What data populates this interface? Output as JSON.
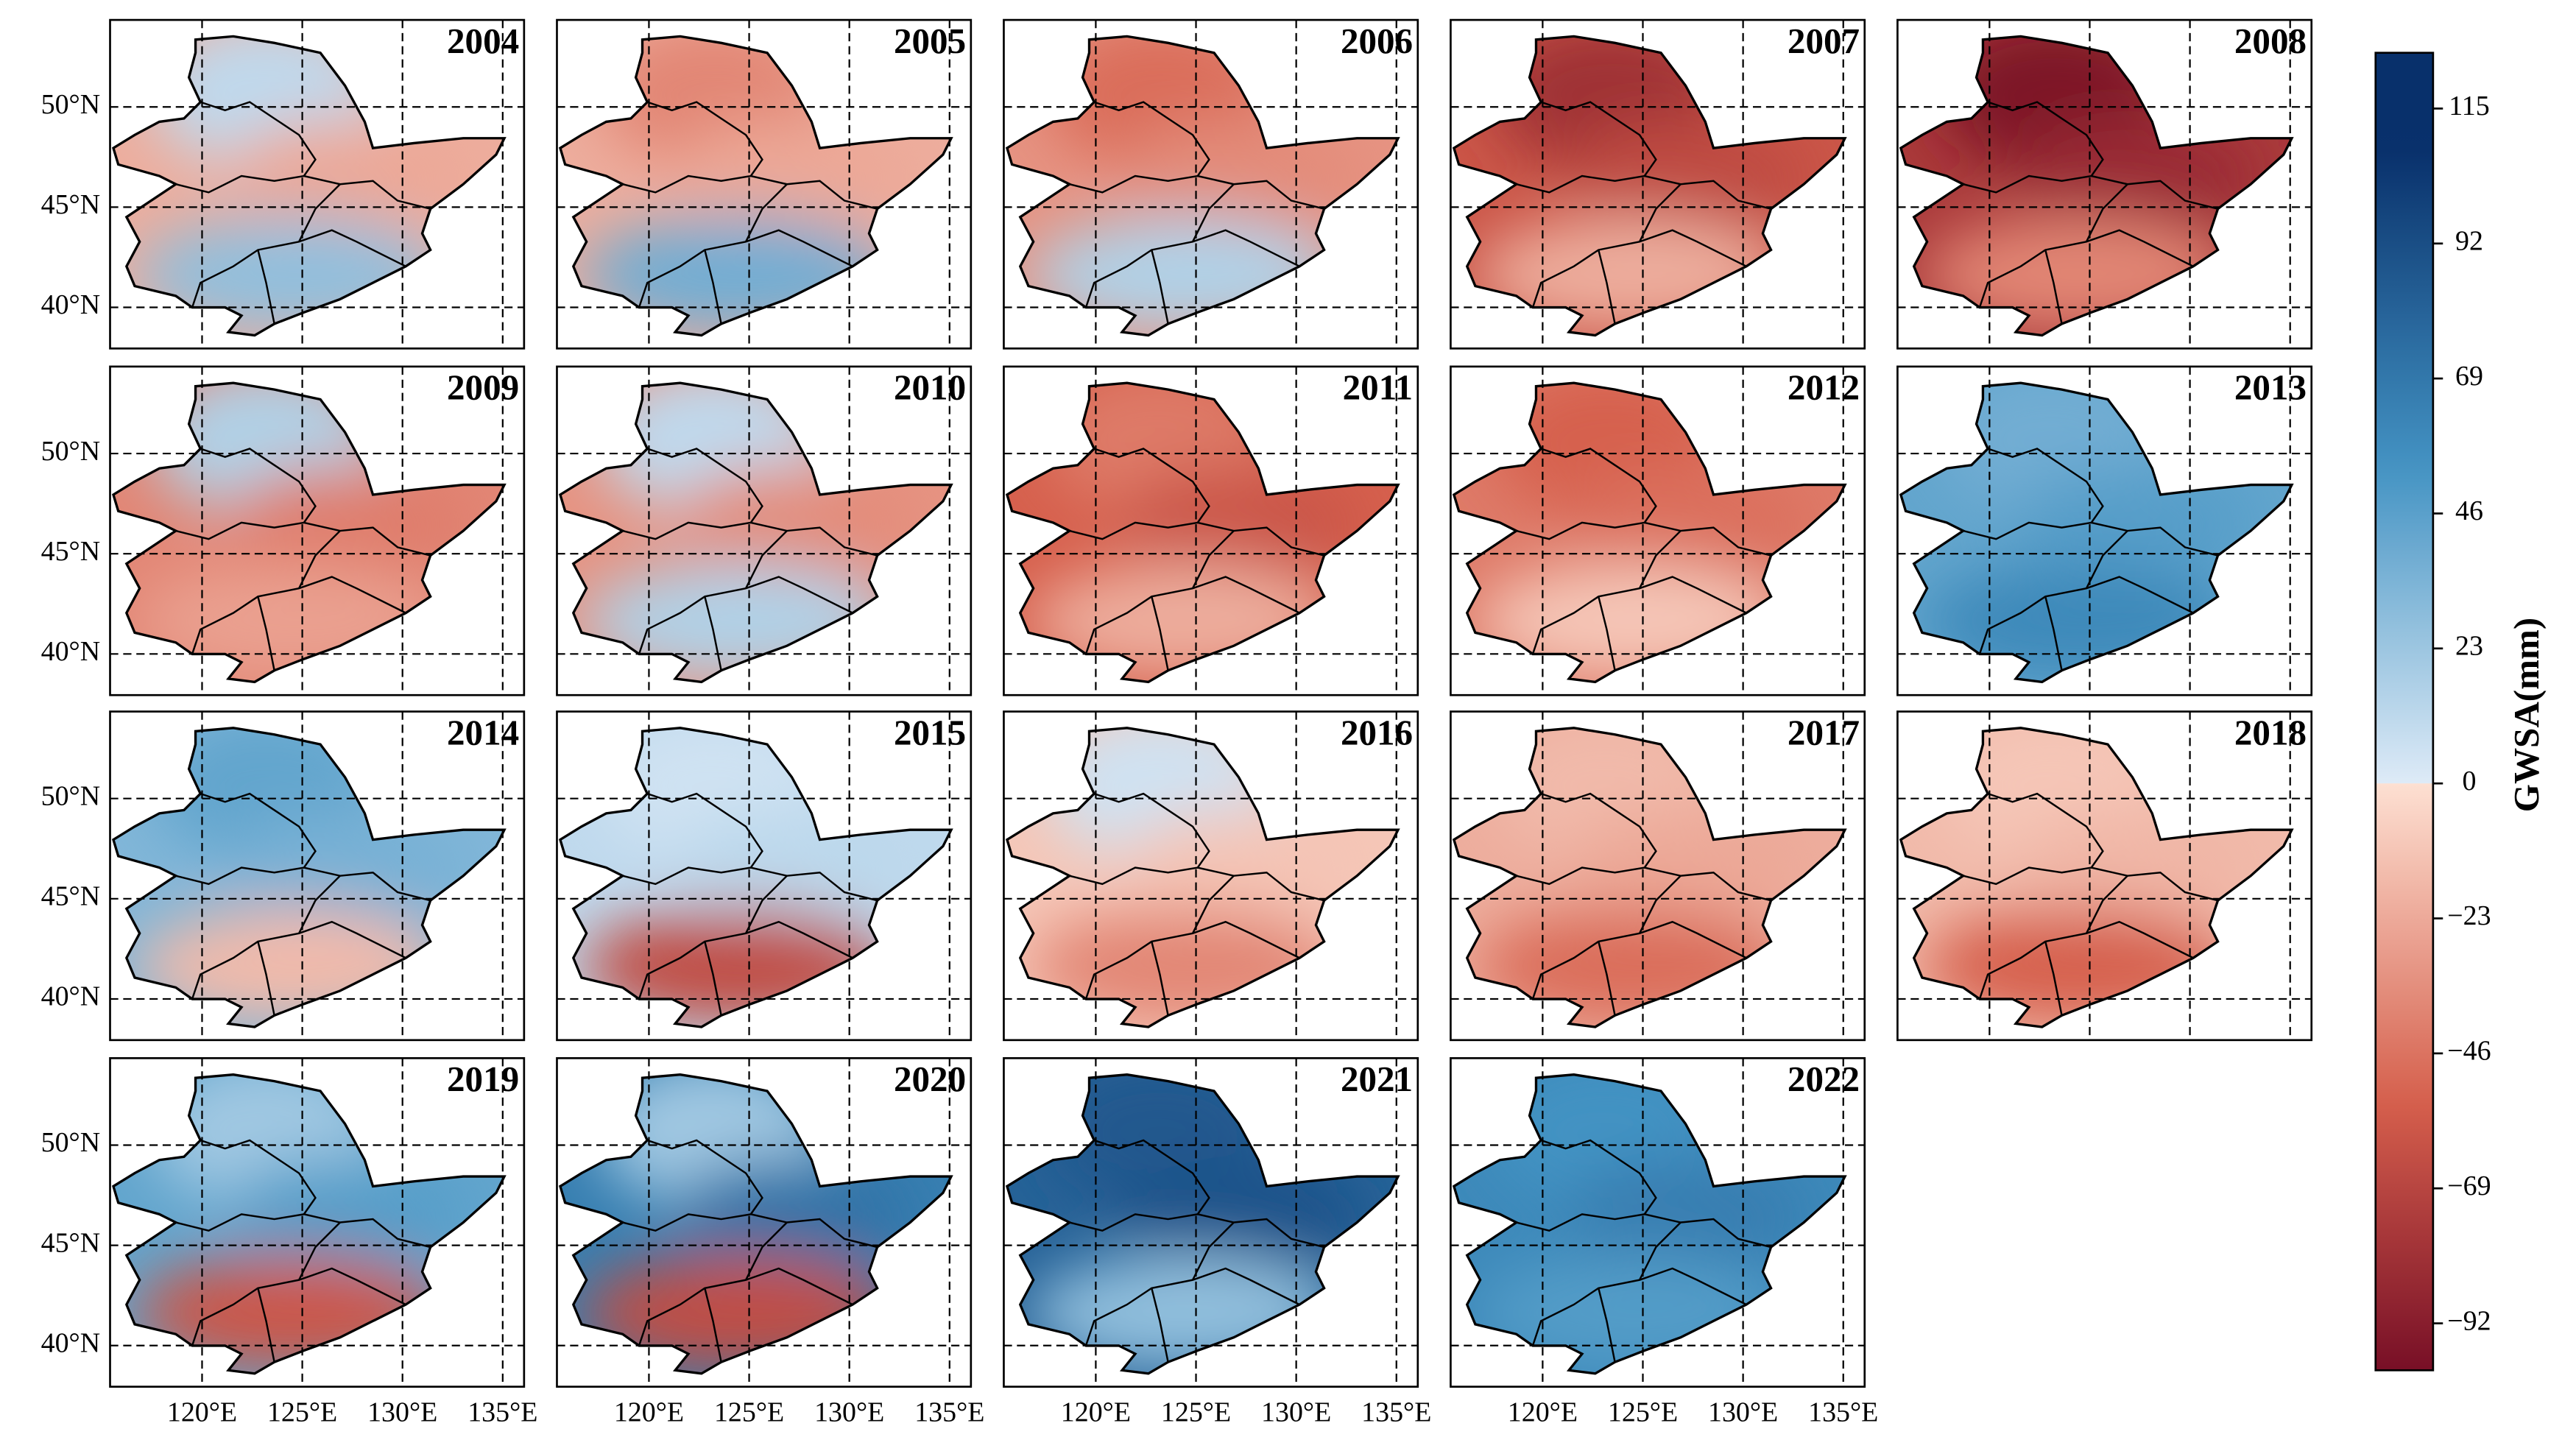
{
  "panels": [
    "2004",
    "2005",
    "2006",
    "2007",
    "2008",
    "2009",
    "2010",
    "2011",
    "2012",
    "2013",
    "2014",
    "2015",
    "2016",
    "2017",
    "2018",
    "2019",
    "2020",
    "2021",
    "2022"
  ],
  "map": {
    "lat_ticks": [
      {
        "value": 50,
        "label": "50°N"
      },
      {
        "value": 45,
        "label": "45°N"
      },
      {
        "value": 40,
        "label": "40°N"
      }
    ],
    "lon_ticks": [
      {
        "value": 120,
        "label": "120°E"
      },
      {
        "value": 125,
        "label": "125°E"
      },
      {
        "value": 130,
        "label": "130°E"
      },
      {
        "value": 135,
        "label": "135°E"
      }
    ]
  },
  "colorbar": {
    "label": "GWSA(mm)",
    "lim": [
      -100,
      124.5
    ],
    "ticks": [
      115,
      92,
      69,
      46,
      23,
      0,
      {
        "value": -23,
        "label": "−23"
      },
      {
        "value": -46,
        "label": "−46"
      },
      {
        "value": -69,
        "label": "−69"
      },
      {
        "value": -92,
        "label": "−92"
      }
    ]
  }
}
